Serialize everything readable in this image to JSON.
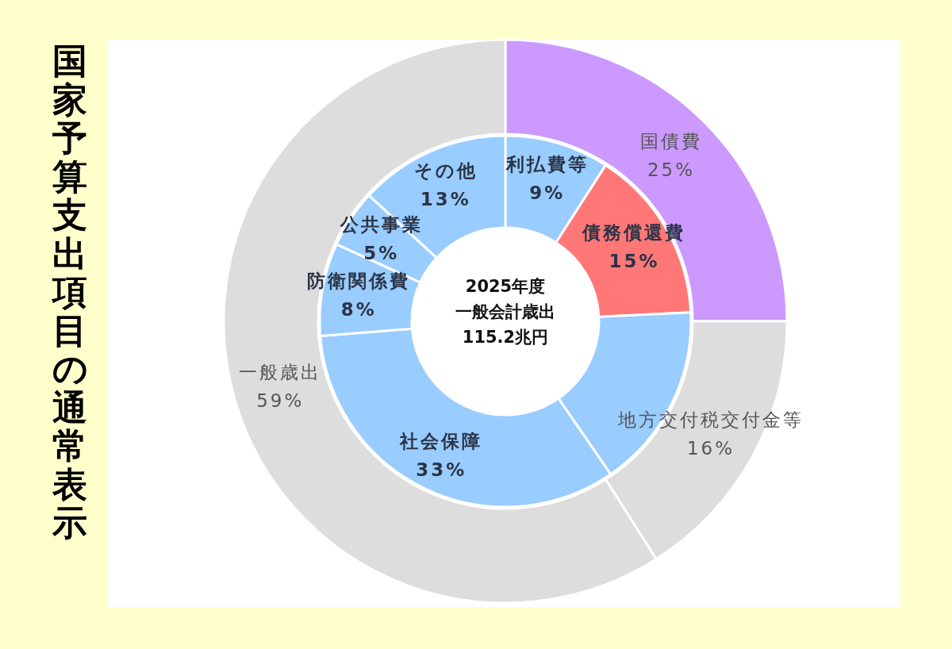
{
  "chart_data": [
    {
      "type": "donut",
      "title": "国家予算支出項目の通常表示",
      "categories": [
        "国債費",
        "地方交付税交付金等",
        "一般歳出"
      ],
      "values": [
        25,
        16,
        59
      ],
      "colors": [
        "#cc99ff",
        "#dddddd",
        "#dddddd"
      ],
      "value_labels": [
        "25%",
        "16%",
        "59%"
      ]
    },
    {
      "type": "donut",
      "categories": [
        "利払費等",
        "債務償還費",
        null,
        "社会保障",
        "防衛関係費",
        "公共事業",
        "その他"
      ],
      "values": [
        9,
        15,
        16,
        33,
        8,
        5,
        13
      ],
      "colors": [
        "#99ccff",
        "#ff7777",
        "#99ccff",
        "#99ccff",
        "#99ccff",
        "#99ccff",
        "#99ccff"
      ],
      "value_labels": [
        "9%",
        "15%",
        null,
        "33%",
        "8%",
        "5%",
        "13%"
      ],
      "annotations": [
        "2025年度",
        "一般会計歳出",
        "115.2兆円"
      ]
    }
  ]
}
